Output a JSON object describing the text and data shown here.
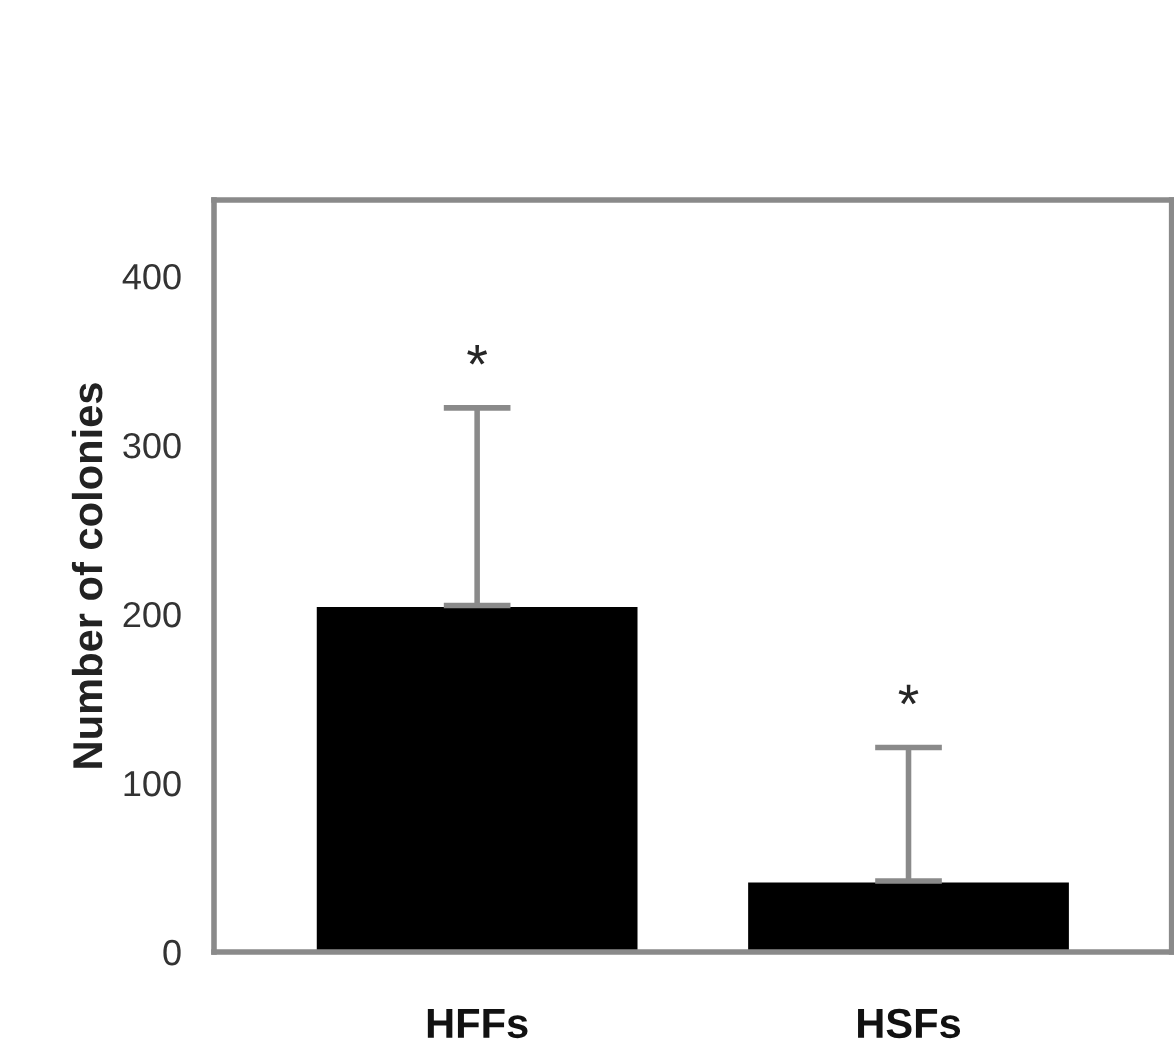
{
  "chart_data": {
    "type": "bar",
    "ylabel": "Number of colonies",
    "categories": [
      "HFFs",
      "HSFs"
    ],
    "values": [
      205,
      42
    ],
    "errors": [
      [
        205,
        322
      ],
      [
        42,
        121
      ]
    ],
    "color": "#000000",
    "ylim": [
      0,
      445
    ],
    "yticks": [
      0,
      100,
      200,
      300,
      400
    ],
    "annotations": [
      "*",
      "*"
    ],
    "grid": false,
    "legend": false
  }
}
